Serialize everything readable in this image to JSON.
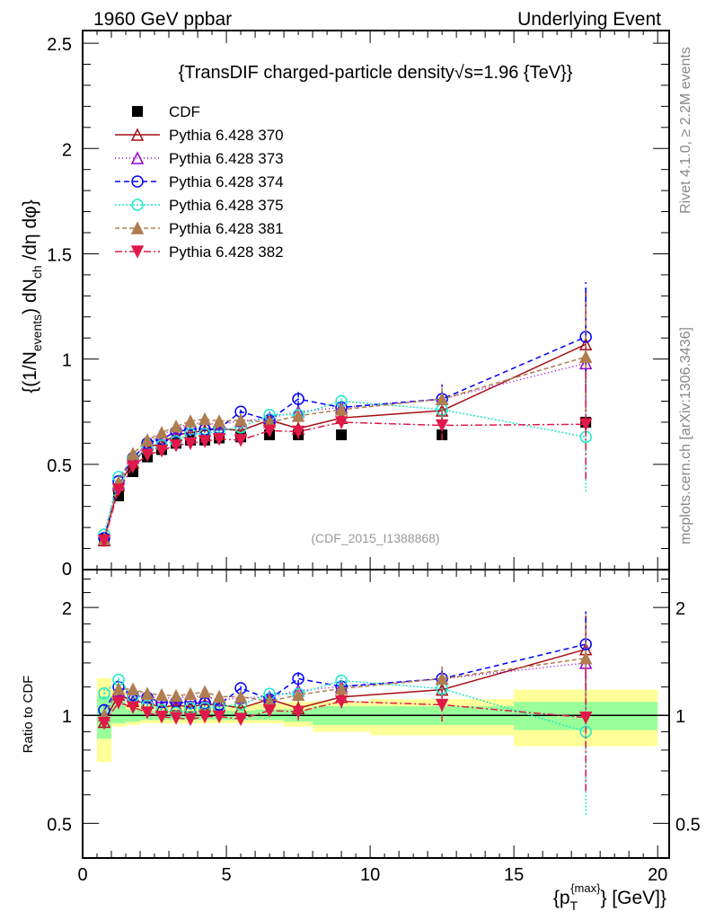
{
  "header": {
    "left": "1960 GeV ppbar",
    "right": "Underlying Event"
  },
  "side": {
    "rivet": "Rivet 4.1.0, ≥ 2.2M events",
    "mcplots": "mcplots.cern.ch [arXiv:1306.3436]"
  },
  "watermark": "(CDF_2015_I1388868)",
  "chart_data": {
    "type": "line",
    "title": "{TransDIF charged-particle density√s=1.96 {TeV}}",
    "ylabel": {
      "p1": "{(1/N",
      "p1sub": "events",
      "p2": ") dN",
      "p2sub": "ch",
      "p3": " /dη  dφ}"
    },
    "xlabel": {
      "p1": "{p",
      "sub": "T",
      "sup": "{max}",
      "p2": "} [GeV]}"
    },
    "ratio_ylabel": "Ratio to CDF",
    "xlim": [
      0,
      20.4
    ],
    "ylim": [
      0,
      2.56
    ],
    "ratio_ylim": [
      0.4,
      2.55
    ],
    "ratio_scale": "log",
    "xticks": [
      "0",
      "5",
      "10",
      "15",
      "20"
    ],
    "yticks": [
      "0",
      "0.5",
      "1",
      "1.5",
      "2",
      "2.5"
    ],
    "ratio_yticks": [
      "0.5",
      "1",
      "2"
    ],
    "legend_placement": "top-left",
    "x": [
      0.75,
      1.25,
      1.75,
      2.25,
      2.75,
      3.25,
      3.75,
      4.25,
      4.75,
      5.5,
      6.5,
      7.5,
      9,
      12.5,
      17.5
    ],
    "bin_edges": [
      0.5,
      1,
      1.5,
      2,
      2.5,
      3,
      3.5,
      4,
      4.5,
      5,
      6,
      7,
      8,
      10,
      15,
      20
    ],
    "data": {
      "name": "CDF",
      "color": "#000000",
      "values": [
        0.145,
        0.35,
        0.465,
        0.535,
        0.57,
        0.6,
        0.615,
        0.615,
        0.625,
        0.63,
        0.64,
        0.64,
        0.64,
        0.64,
        0.7
      ],
      "band_total": [
        [
          0.74,
          1.27
        ],
        [
          0.93,
          1.18
        ],
        [
          0.94,
          1.08
        ],
        [
          0.95,
          1.07
        ],
        [
          0.95,
          1.07
        ],
        [
          0.95,
          1.07
        ],
        [
          0.95,
          1.07
        ],
        [
          0.95,
          1.07
        ],
        [
          0.95,
          1.07
        ],
        [
          0.95,
          1.07
        ],
        [
          0.95,
          1.08
        ],
        [
          0.93,
          1.09
        ],
        [
          0.9,
          1.095
        ],
        [
          0.88,
          1.11
        ],
        [
          0.82,
          1.18
        ]
      ],
      "band_stat": [
        [
          0.86,
          1.13
        ],
        [
          0.95,
          1.13
        ],
        [
          0.96,
          1.04
        ],
        [
          0.97,
          1.03
        ],
        [
          0.97,
          1.03
        ],
        [
          0.97,
          1.03
        ],
        [
          0.97,
          1.03
        ],
        [
          0.97,
          1.03
        ],
        [
          0.97,
          1.03
        ],
        [
          0.97,
          1.03
        ],
        [
          0.97,
          1.04
        ],
        [
          0.96,
          1.04
        ],
        [
          0.94,
          1.06
        ],
        [
          0.94,
          1.06
        ],
        [
          0.91,
          1.09
        ]
      ]
    },
    "mc_errors": [
      0.005,
      0.01,
      0.01,
      0.01,
      0.01,
      0.01,
      0.01,
      0.01,
      0.01,
      0.01,
      0.015,
      0.035,
      0.03,
      0.07,
      0.26
    ],
    "series": [
      {
        "name": "Pythia 6.428 370",
        "color": "#a50f15",
        "marker": "triangle-open",
        "dash": "",
        "values": [
          0.139,
          0.4,
          0.51,
          0.58,
          0.6,
          0.64,
          0.65,
          0.66,
          0.67,
          0.66,
          0.71,
          0.67,
          0.72,
          0.755,
          1.07
        ]
      },
      {
        "name": "Pythia 6.428 373",
        "color": "#9400d3",
        "marker": "triangle-open",
        "dash": "1,3",
        "values": [
          0.145,
          0.41,
          0.53,
          0.6,
          0.64,
          0.67,
          0.695,
          0.695,
          0.69,
          0.705,
          0.72,
          0.75,
          0.77,
          0.81,
          0.98
        ]
      },
      {
        "name": "Pythia 6.428 374",
        "color": "#0000ff",
        "marker": "circle-open",
        "dash": "6,4",
        "values": [
          0.15,
          0.42,
          0.53,
          0.6,
          0.62,
          0.655,
          0.665,
          0.665,
          0.67,
          0.75,
          0.71,
          0.81,
          0.77,
          0.81,
          1.105
        ]
      },
      {
        "name": "Pythia 6.428 375",
        "color": "#1de9c8",
        "marker": "circle-open",
        "dash": "2,2",
        "values": [
          0.167,
          0.44,
          0.525,
          0.57,
          0.59,
          0.61,
          0.645,
          0.645,
          0.66,
          0.675,
          0.735,
          0.735,
          0.8,
          0.76,
          0.63
        ]
      },
      {
        "name": "Pythia 6.428 381",
        "color": "#b07d50",
        "marker": "triangle-filled",
        "dash": "5,3",
        "values": [
          0.145,
          0.415,
          0.55,
          0.615,
          0.65,
          0.68,
          0.705,
          0.715,
          0.705,
          0.71,
          0.7,
          0.73,
          0.76,
          0.81,
          1.01
        ]
      },
      {
        "name": "Pythia 6.428 382",
        "color": "#e0194a",
        "marker": "triangle-down-filled",
        "dash": "8,3,2,3",
        "values": [
          0.138,
          0.38,
          0.49,
          0.545,
          0.565,
          0.59,
          0.6,
          0.61,
          0.62,
          0.615,
          0.66,
          0.655,
          0.7,
          0.685,
          0.69
        ]
      }
    ]
  }
}
